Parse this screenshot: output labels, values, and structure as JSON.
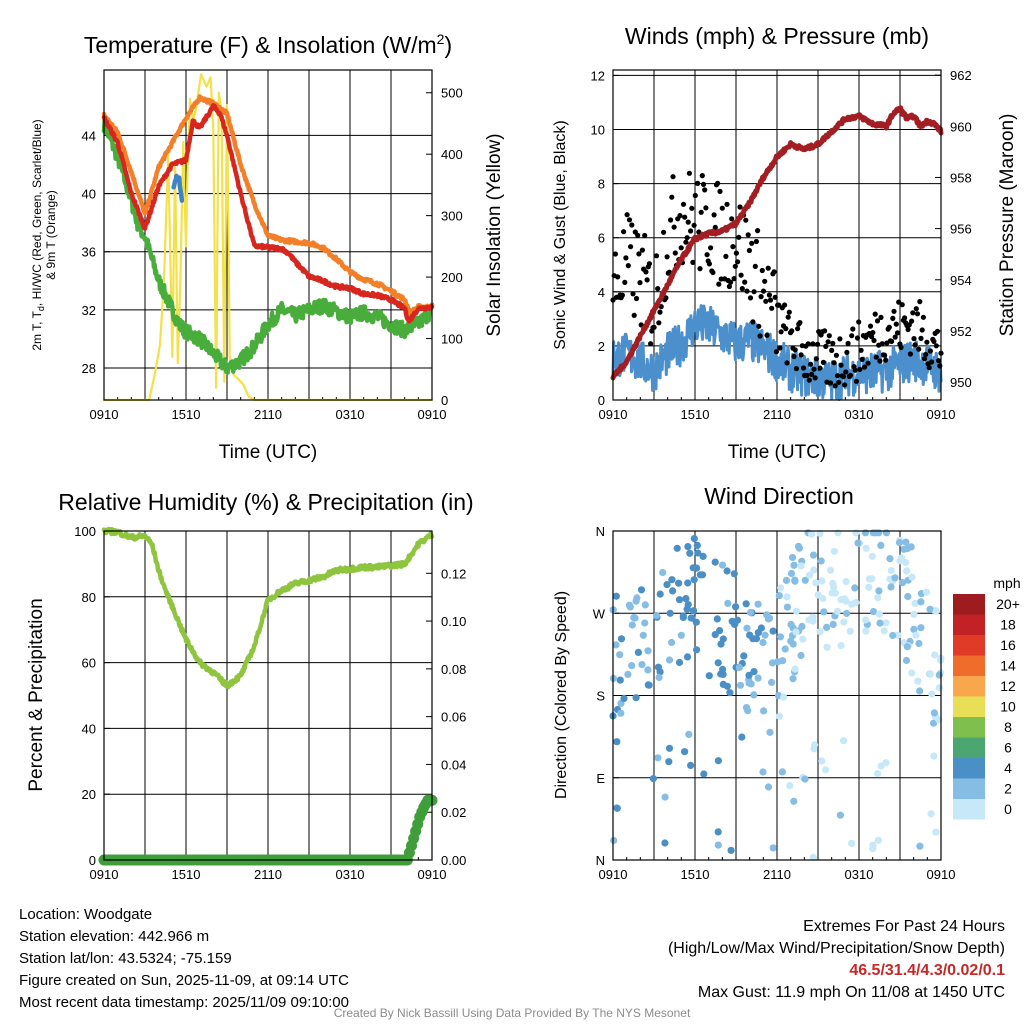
{
  "chart_data": [
    {
      "type": "line",
      "title": "Temperature (F) & Insolation (W/m²)",
      "title_main": "Temperature (F) & Insolation (W/m",
      "title_sup": "2",
      "title_end": ")",
      "xlabel": "Time (UTC)",
      "ylabel_line1": "2m T, T",
      "ylabel_sub": "d",
      "ylabel_line1_end": ", HI/WC (Red, Green, Scarlet/Blue)",
      "ylabel_line2": "& 9m T (Orange)",
      "y2label": "Solar Insolation (Yellow)",
      "x_ticks": [
        "0910",
        "1510",
        "2110",
        "0310",
        "0910"
      ],
      "ylim": [
        25.8,
        48.5
      ],
      "y_ticks": [
        "28",
        "32",
        "36",
        "40",
        "44"
      ],
      "y2lim": [
        0,
        537
      ],
      "y2_ticks": [
        "0",
        "100",
        "200",
        "300",
        "400",
        "500"
      ],
      "x_hours": [
        0,
        24
      ],
      "series": [
        {
          "name": "2m T",
          "color": "#d7261e",
          "x": [
            0,
            1,
            2,
            3,
            4,
            5,
            6,
            6.5,
            7,
            8,
            8.5,
            9,
            10,
            11,
            12,
            13,
            13.5,
            14,
            15,
            16,
            17,
            18,
            19,
            20,
            21,
            22,
            22.3,
            23,
            24
          ],
          "y": [
            45.2,
            43.5,
            40,
            37.6,
            40.5,
            42,
            42.3,
            45,
            44.5,
            46,
            45.5,
            44,
            40,
            36.4,
            36.3,
            36.2,
            35.9,
            35.3,
            34.3,
            34,
            33.6,
            33.5,
            33.1,
            33,
            32.7,
            32.1,
            31.2,
            32.1,
            32.2
          ]
        },
        {
          "name": "9m T",
          "color": "#f47f29",
          "x": [
            0,
            1,
            2,
            3,
            4,
            5,
            6,
            7,
            8,
            9,
            10,
            11,
            12,
            13,
            14,
            15,
            16,
            17,
            18,
            19,
            20,
            21,
            22,
            22.4,
            23,
            24
          ],
          "y": [
            45.4,
            44.2,
            41.5,
            38.6,
            41.8,
            43.5,
            45.2,
            46.6,
            46.2,
            45.5,
            42,
            39.3,
            37.1,
            36.8,
            36.7,
            36.6,
            36.3,
            35.5,
            34.6,
            34.1,
            33.8,
            33.3,
            32.7,
            31.8,
            32.2,
            32.2
          ]
        },
        {
          "name": "Td",
          "color": "#49ad3c",
          "x": [
            0,
            1,
            2,
            2.5,
            3,
            4,
            5,
            5.5,
            6,
            7,
            8,
            9,
            10,
            11,
            12,
            13,
            14,
            15,
            16,
            17,
            18,
            19,
            20,
            21,
            22,
            23,
            24
          ],
          "y": [
            44.8,
            42.5,
            39.5,
            37.8,
            37,
            34,
            32,
            31,
            30.5,
            30,
            29,
            28,
            28.5,
            29.5,
            31,
            32,
            31.6,
            32,
            32.3,
            31.9,
            31.5,
            31.8,
            31.5,
            31,
            30.6,
            31,
            32
          ]
        },
        {
          "name": "WC",
          "color": "#3e83c3",
          "x": [
            5.1,
            5.3,
            5.5,
            5.7
          ],
          "y": [
            40.3,
            41.3,
            41,
            39.5
          ]
        },
        {
          "name": "Solar Insolation",
          "color": "#f3e14a",
          "axis": "y2",
          "x": [
            0,
            2.9,
            3.3,
            3.7,
            4.1,
            4.4,
            4.7,
            5,
            5.2,
            5.4,
            5.6,
            5.8,
            6,
            6.1,
            6.3,
            6.5,
            6.7,
            6.9,
            7.1,
            7.3,
            7.5,
            7.8,
            8,
            8.2,
            8.4,
            8.6,
            8.8,
            9,
            9.2,
            9.5,
            9.8,
            10.2,
            10.6,
            11,
            24
          ],
          "y": [
            0,
            0,
            0,
            40,
            90,
            200,
            400,
            70,
            380,
            60,
            200,
            420,
            250,
            370,
            490,
            455,
            470,
            500,
            530,
            520,
            510,
            525,
            440,
            20,
            500,
            470,
            30,
            480,
            70,
            40,
            35,
            25,
            5,
            0,
            0
          ]
        }
      ]
    },
    {
      "type": "scatter",
      "title": "Winds (mph) & Pressure (mb)",
      "xlabel": "Time (UTC)",
      "ylabel": "Sonic Wind & Gust (Blue, Black)",
      "y2label": "Station Pressure (Maroon)",
      "x_ticks": [
        "0910",
        "1510",
        "2110",
        "0310",
        "0910"
      ],
      "ylim": [
        0,
        12.2
      ],
      "y_ticks": [
        "0",
        "2",
        "4",
        "6",
        "8",
        "10",
        "12"
      ],
      "y2lim": [
        949.3,
        962.2
      ],
      "y2_ticks": [
        "950",
        "952",
        "954",
        "956",
        "958",
        "960",
        "962"
      ],
      "x_hours": [
        0,
        24
      ],
      "series": [
        {
          "name": "Sonic Wind",
          "color": "#4b8fcd",
          "x": [
            0,
            1,
            2,
            3,
            4,
            5,
            6,
            7,
            8,
            9,
            10,
            11,
            12,
            13,
            14,
            15,
            16,
            17,
            18,
            19,
            20,
            21,
            22,
            23,
            24
          ],
          "y": [
            1.6,
            1.7,
            1.4,
            1.1,
            1.7,
            2.1,
            2.8,
            2.7,
            2.4,
            2.1,
            2.2,
            1.9,
            1.5,
            1.1,
            0.9,
            0.8,
            0.7,
            0.9,
            1.0,
            1.0,
            1.1,
            1.3,
            1.5,
            1.3,
            1.0
          ]
        },
        {
          "name": "Gust",
          "color": "#000000",
          "x": [
            0,
            1,
            2,
            3,
            4,
            5,
            6,
            7,
            8,
            9,
            10,
            11,
            12,
            13,
            14,
            15,
            16,
            17,
            18,
            19,
            20,
            21,
            22,
            23,
            24
          ],
          "y": [
            4.0,
            5.0,
            4.5,
            3.5,
            6.0,
            7.0,
            6.5,
            6.5,
            6.0,
            6.0,
            5.0,
            4.0,
            2.9,
            2.2,
            1.7,
            1.5,
            1.4,
            1.6,
            1.8,
            2.3,
            2.6,
            2.7,
            2.8,
            2.3,
            1.7
          ]
        },
        {
          "name": "Station Pressure",
          "color": "#a31e22",
          "axis": "y2",
          "x": [
            0,
            1,
            2,
            3,
            4,
            5,
            6,
            7,
            8,
            9,
            10,
            11,
            12,
            13,
            14,
            15,
            16,
            17,
            18,
            19,
            20,
            20.5,
            21,
            21.5,
            22,
            22.5,
            23,
            23.5,
            24
          ],
          "y": [
            950.2,
            950.8,
            951.8,
            952.8,
            953.8,
            954.8,
            955.6,
            955.8,
            955.9,
            956.2,
            957,
            958,
            958.8,
            959.3,
            959.1,
            959.3,
            959.8,
            960.3,
            960.4,
            960.1,
            960,
            960.5,
            960.7,
            960.3,
            960.4,
            960.0,
            960.2,
            960.1,
            959.8
          ]
        }
      ]
    },
    {
      "type": "line",
      "title": "Relative Humidity (%) & Precipitation (in)",
      "ylabel": "Percent & Precipitation",
      "x_ticks": [
        "0910",
        "1510",
        "2110",
        "0310",
        "0910"
      ],
      "ylim": [
        0,
        100
      ],
      "y_ticks": [
        "0",
        "20",
        "40",
        "60",
        "80",
        "100"
      ],
      "y2lim": [
        0,
        0.1377
      ],
      "y2_ticks": [
        "0.00",
        "0.02",
        "0.04",
        "0.06",
        "0.08",
        "0.10",
        "0.12"
      ],
      "x_hours": [
        0,
        24
      ],
      "series": [
        {
          "name": "Relative Humidity",
          "color": "#8fc43f",
          "x": [
            0,
            1,
            2,
            3,
            3.5,
            4,
            4.5,
            5,
            6,
            7,
            8,
            9,
            10,
            11,
            12,
            13,
            14,
            15,
            16,
            17,
            18,
            19,
            20,
            21,
            22,
            23,
            24
          ],
          "y": [
            100,
            99.7,
            98,
            98.5,
            96,
            88,
            82,
            77,
            67,
            60,
            57,
            53,
            56,
            65,
            79,
            82,
            84,
            85,
            86,
            88,
            88.5,
            89,
            89,
            89.5,
            90,
            96,
            99
          ]
        },
        {
          "name": "Precipitation",
          "color": "#3f9e3a",
          "axis": "y2",
          "x": [
            0,
            22.2,
            22.5,
            22.8,
            23.1,
            23.4,
            23.7,
            24
          ],
          "y": [
            0,
            0,
            0.006,
            0.012,
            0.018,
            0.022,
            0.025,
            0.025
          ]
        }
      ]
    },
    {
      "type": "scatter",
      "title": "Wind Direction",
      "ylabel": "Direction (Colored By Speed)",
      "x_ticks": [
        "0910",
        "1510",
        "2110",
        "0310",
        "0910"
      ],
      "y_ticks": [
        "N",
        "E",
        "S",
        "W",
        "N"
      ],
      "ylim": [
        0,
        360
      ],
      "x_hours": [
        0,
        24
      ],
      "legend_title": "mph",
      "legend_labels": [
        "20+",
        "18",
        "16",
        "14",
        "12",
        "10",
        "8",
        "6",
        "4",
        "2",
        "0"
      ],
      "legend_colors": [
        "#9e1b1f",
        "#c22126",
        "#e03b27",
        "#f06c2a",
        "#f9a74d",
        "#e9df57",
        "#7fbf4d",
        "#4ba672",
        "#4a8fc6",
        "#85bde5",
        "#c6e8f8"
      ],
      "trend": [
        {
          "x": 0,
          "dir": 225,
          "speed": 3.5
        },
        {
          "x": 2,
          "dir": 230,
          "speed": 3.5
        },
        {
          "x": 4,
          "dir": 280,
          "speed": 4.5
        },
        {
          "x": 6,
          "dir": 290,
          "speed": 5
        },
        {
          "x": 8,
          "dir": 255,
          "speed": 4.8
        },
        {
          "x": 10,
          "dir": 230,
          "speed": 4
        },
        {
          "x": 12,
          "dir": 220,
          "speed": 3
        },
        {
          "x": 14,
          "dir": 300,
          "speed": 2
        },
        {
          "x": 16,
          "dir": 290,
          "speed": 1.5
        },
        {
          "x": 18,
          "dir": 320,
          "speed": 1.5
        },
        {
          "x": 20,
          "dir": 300,
          "speed": 2
        },
        {
          "x": 22,
          "dir": 270,
          "speed": 2
        },
        {
          "x": 24,
          "dir": 200,
          "speed": 1.5
        }
      ]
    }
  ],
  "footer": {
    "location": "Location: Woodgate",
    "elevation": "Station elevation: 442.966 m",
    "latlon": "Station lat/lon: 43.5324; -75.159",
    "created": "Figure created on Sun, 2025-11-09, at 09:14 UTC",
    "recent": "Most recent data timestamp: 2025/11/09 09:10:00",
    "extremes_title": "Extremes For Past 24 Hours",
    "extremes_desc": "(High/Low/Max Wind/Precipitation/Snow Depth)",
    "extremes_values": "46.5/31.4/4.3/0.02/0.1",
    "max_gust": "Max Gust: 11.9 mph On 11/08 at 1450 UTC",
    "credit": "Created By Nick Bassill Using Data Provided By The NYS Mesonet"
  }
}
